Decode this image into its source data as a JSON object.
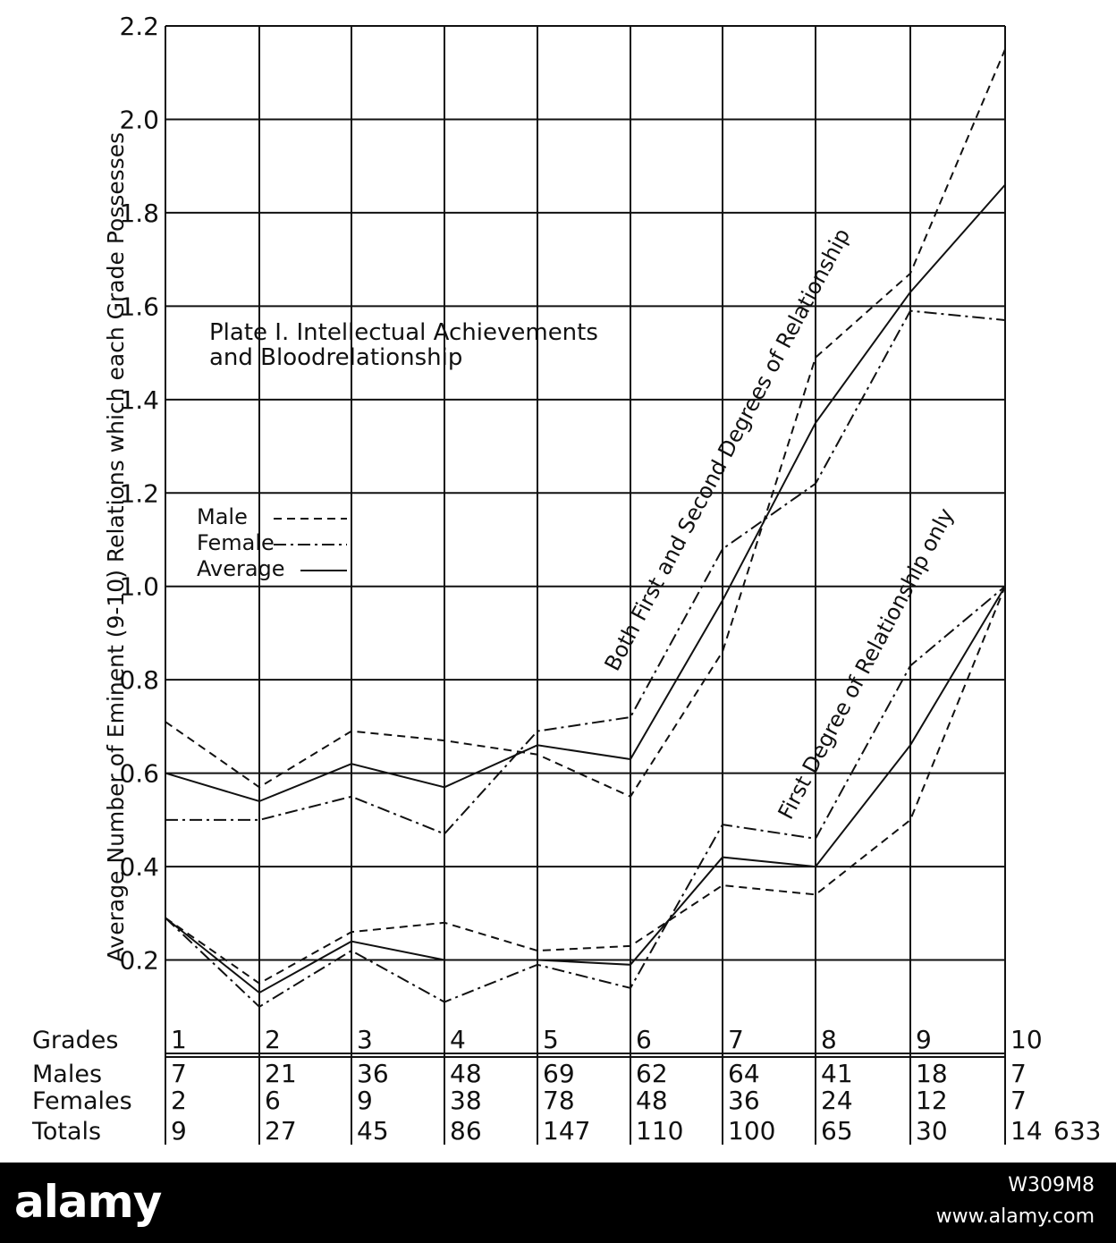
{
  "chart_data": {
    "type": "line",
    "title": "Plate I. Intellectual Achievements and Bloodrelationship",
    "title_lines": [
      "Plate I.  Intellectual Achievements",
      "and Bloodrelationship"
    ],
    "ylabel": "Average Number of Eminent (9-10) Relations which each Grade Possesses",
    "ylim": [
      0.0,
      2.2
    ],
    "yticks": [
      "0.2",
      "0.4",
      "0.6",
      "0.8",
      "1.0",
      "1.2",
      "1.4",
      "1.6",
      "1.8",
      "2.0",
      "2.2"
    ],
    "grid": true,
    "legend_position": "left",
    "legend": [
      {
        "label": "Male",
        "style": "dashed"
      },
      {
        "label": "Female",
        "style": "dash-dot"
      },
      {
        "label": "Average",
        "style": "solid"
      }
    ],
    "x": [
      1,
      2,
      3,
      4,
      5,
      6,
      7,
      8,
      9,
      10
    ],
    "groups": [
      {
        "label": "Both First and Second Degrees of Relationship",
        "series": [
          {
            "name": "Male",
            "style": "dashed",
            "values": [
              0.71,
              0.57,
              0.69,
              0.67,
              0.64,
              0.55,
              0.86,
              1.49,
              1.67,
              2.15
            ]
          },
          {
            "name": "Female",
            "style": "dash-dot",
            "values": [
              0.5,
              0.5,
              0.55,
              0.47,
              0.69,
              0.72,
              1.08,
              1.22,
              1.59,
              1.57
            ]
          },
          {
            "name": "Average",
            "style": "solid",
            "values": [
              0.6,
              0.54,
              0.62,
              0.57,
              0.66,
              0.63,
              0.97,
              1.35,
              1.63,
              1.86
            ]
          }
        ]
      },
      {
        "label": "First Degree of Relationship only",
        "series": [
          {
            "name": "Male",
            "style": "dashed",
            "values": [
              0.29,
              0.15,
              0.26,
              0.28,
              0.22,
              0.23,
              0.36,
              0.34,
              0.5,
              1.0
            ]
          },
          {
            "name": "Female",
            "style": "dash-dot",
            "values": [
              0.29,
              0.1,
              0.22,
              0.11,
              0.19,
              0.14,
              0.49,
              0.46,
              0.83,
              1.0
            ]
          },
          {
            "name": "Average",
            "style": "solid",
            "values": [
              0.29,
              0.13,
              0.24,
              0.2,
              0.2,
              0.19,
              0.42,
              0.4,
              0.66,
              1.0
            ]
          }
        ]
      }
    ],
    "table": {
      "rows": [
        {
          "label": "Grades",
          "values": [
            "1",
            "2",
            "3",
            "4",
            "5",
            "6",
            "7",
            "8",
            "9",
            "10"
          ]
        },
        {
          "label": "Males",
          "values": [
            "7",
            "21",
            "36",
            "48",
            "69",
            "62",
            "64",
            "41",
            "18",
            "7"
          ]
        },
        {
          "label": "Females",
          "values": [
            "2",
            "6",
            "9",
            "38",
            "78",
            "48",
            "36",
            "24",
            "12",
            "7"
          ]
        },
        {
          "label": "Totals",
          "values": [
            "9",
            "27",
            "45",
            "86",
            "147",
            "110",
            "100",
            "65",
            "30",
            "14"
          ]
        }
      ],
      "page_number": "633"
    }
  },
  "watermark": {
    "logo": "alamy",
    "image_id": "W309M8",
    "url": "www.alamy.com"
  }
}
